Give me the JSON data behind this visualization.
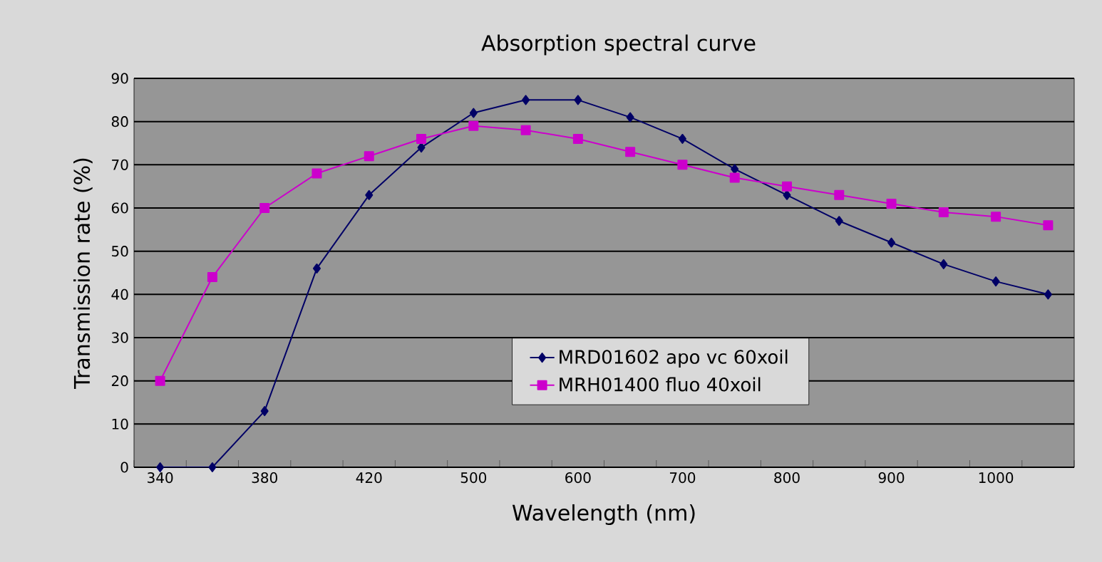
{
  "chart_data": {
    "type": "line",
    "title": "Absorption spectral curve",
    "xlabel": "Wavelength (nm)",
    "ylabel": "Transmission rate (%)",
    "categories": [
      "340",
      null,
      "380",
      null,
      "420",
      null,
      "500",
      null,
      "600",
      null,
      "700",
      null,
      "800",
      null,
      "900",
      null,
      "1000",
      null
    ],
    "ylim": [
      0,
      90
    ],
    "yticks": [
      0,
      10,
      20,
      30,
      40,
      50,
      60,
      70,
      80,
      90
    ],
    "grid": "y",
    "legend": "bottom",
    "series": [
      {
        "name": "MRD01602  apo vc 60xoil",
        "color": "#000066",
        "marker": "diamond",
        "values": [
          0,
          0,
          13,
          46,
          63,
          74,
          82,
          85,
          85,
          81,
          76,
          69,
          63,
          57,
          52,
          47,
          43,
          40
        ]
      },
      {
        "name": "MRH01400  fluo 40xoil",
        "color": "#cc00cc",
        "marker": "square",
        "values": [
          20,
          44,
          60,
          68,
          72,
          76,
          79,
          78,
          76,
          73,
          70,
          67,
          65,
          63,
          61,
          59,
          58,
          56
        ]
      }
    ]
  }
}
